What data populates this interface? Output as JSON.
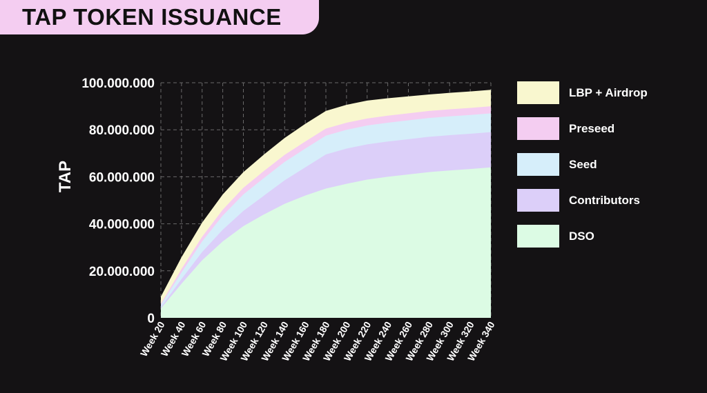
{
  "header": {
    "title": "TAP TOKEN ISSUANCE"
  },
  "chart_data": {
    "type": "area",
    "stacked": true,
    "title": "TAP TOKEN ISSUANCE",
    "xlabel": "",
    "ylabel": "TAP",
    "ylim": [
      0,
      100000000
    ],
    "yticks": [
      0,
      20000000,
      40000000,
      60000000,
      80000000,
      100000000
    ],
    "ytick_labels": [
      "0",
      "20.000.000",
      "40.000.000",
      "60.000.000",
      "80.000.000",
      "100.000.000"
    ],
    "categories": [
      "Week 20",
      "Week 40",
      "Week 60",
      "Week 80",
      "Week 100",
      "Week 120",
      "Week 140",
      "Week 160",
      "Week 180",
      "Week 200",
      "Week 220",
      "Week 240",
      "Week 260",
      "Week 280",
      "Week 300",
      "Week 320",
      "Week 340"
    ],
    "grid": true,
    "legend_position": "right",
    "series": [
      {
        "name": "DSO",
        "color": "#dcfbe4",
        "values": [
          4000000,
          14500000,
          24500000,
          32500000,
          39000000,
          44000000,
          48500000,
          52000000,
          55000000,
          57000000,
          58800000,
          60000000,
          61000000,
          62000000,
          62700000,
          63300000,
          64000000
        ]
      },
      {
        "name": "Contributors",
        "color": "#dccff9",
        "values": [
          500000,
          2000000,
          3500000,
          5000000,
          6500000,
          8000000,
          10000000,
          12000000,
          14500000,
          15000000,
          15000000,
          15000000,
          15000000,
          15000000,
          15000000,
          15000000,
          15000000
        ]
      },
      {
        "name": "Seed",
        "color": "#d6eefa",
        "values": [
          1000000,
          2800000,
          4500000,
          6000000,
          7000000,
          7500000,
          7800000,
          8000000,
          8000000,
          8000000,
          8000000,
          8000000,
          8000000,
          8000000,
          8000000,
          8000000,
          8000000
        ]
      },
      {
        "name": "Preseed",
        "color": "#f4cdf1",
        "values": [
          500000,
          1500000,
          2000000,
          2500000,
          2800000,
          3000000,
          3000000,
          3000000,
          3000000,
          3000000,
          3000000,
          3000000,
          3000000,
          3000000,
          3000000,
          3000000,
          3000000
        ]
      },
      {
        "name": "LBP + Airdrop",
        "color": "#f9f7cf",
        "values": [
          3000000,
          5000000,
          6000000,
          6500000,
          6700000,
          7000000,
          7200000,
          7500000,
          7500000,
          7600000,
          7600000,
          7400000,
          7200000,
          7000000,
          7000000,
          7000000,
          7000000
        ]
      }
    ]
  }
}
